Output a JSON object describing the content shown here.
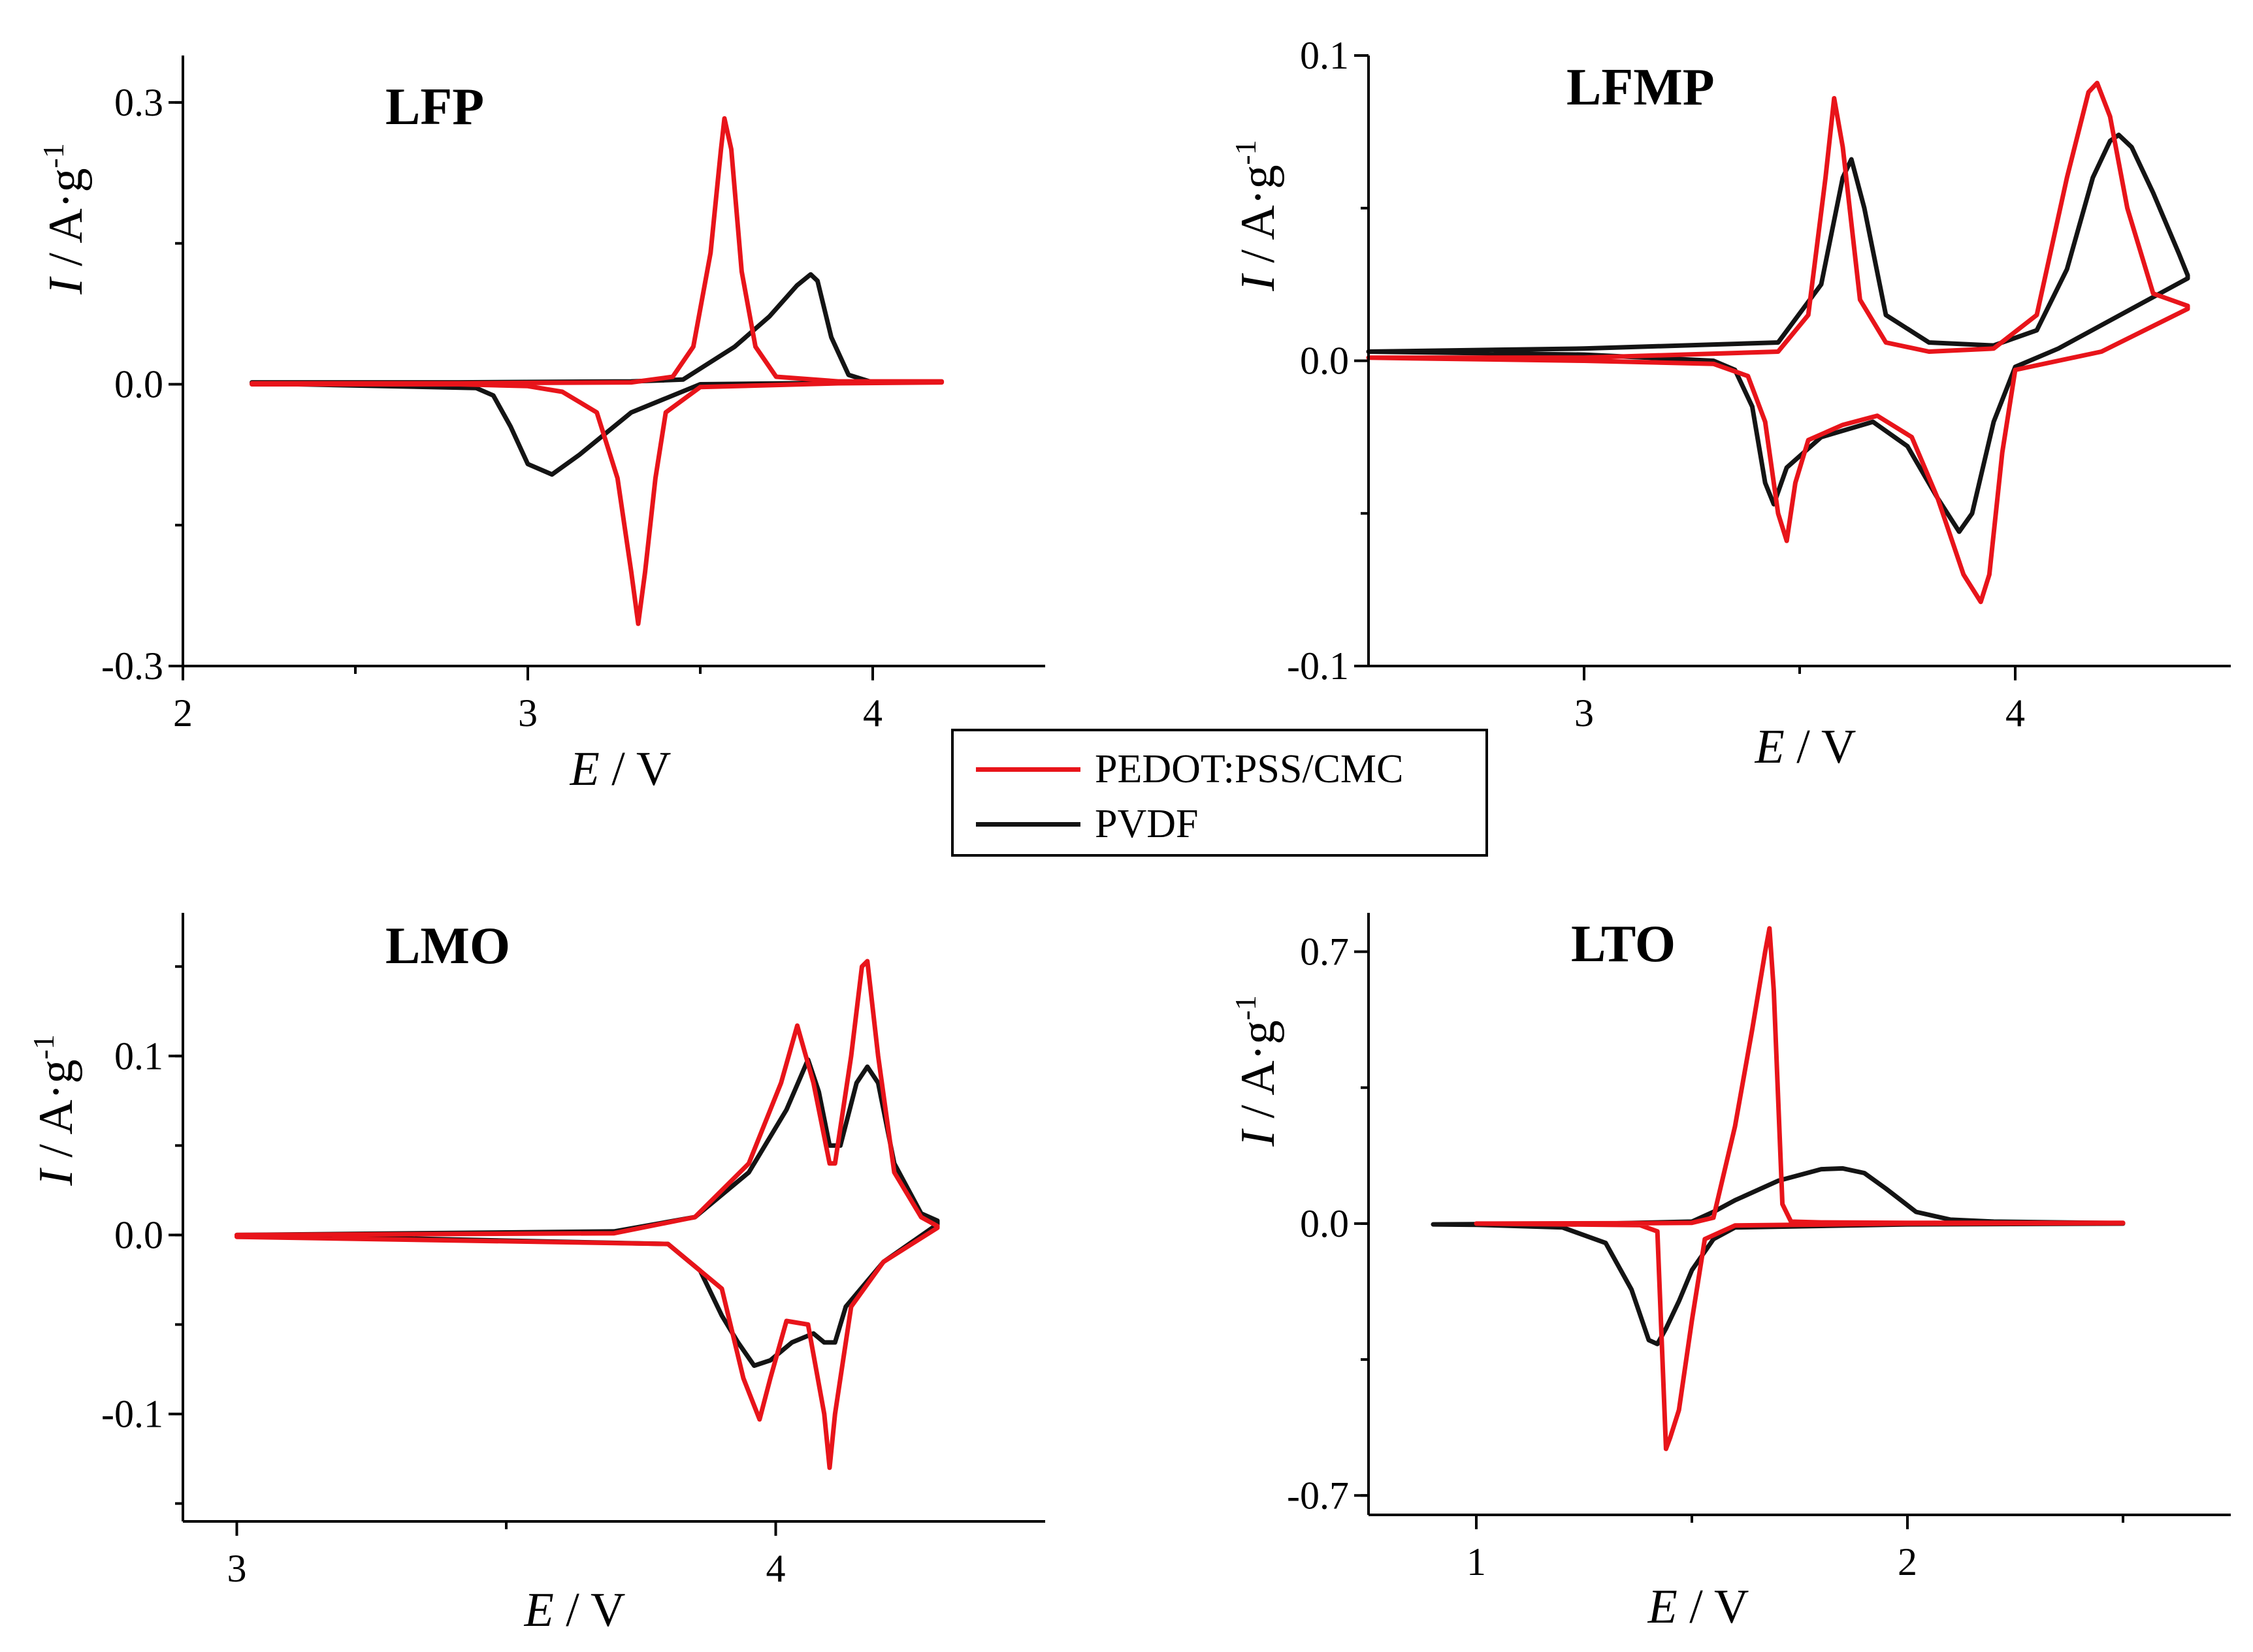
{
  "colors": {
    "pedot": "#e8141a",
    "pvdf": "#141414"
  },
  "legend": {
    "pedot_label": "PEDOT:PSS/CMC",
    "pvdf_label": "PVDF"
  },
  "chart_data": [
    {
      "id": "lfp",
      "type": "line",
      "title": "LFP",
      "xlabel": "E / V",
      "ylabel": "I / A·g-1",
      "xlim": [
        2.0,
        4.5
      ],
      "ylim": [
        -0.3,
        0.35
      ],
      "x_ticks": [
        2,
        3,
        4
      ],
      "y_ticks": [
        -0.3,
        0.0,
        0.3
      ],
      "x_tick_labels": [
        "2",
        "3",
        "4"
      ],
      "y_tick_labels": [
        "-0.3",
        "0.0",
        "0.3"
      ],
      "series": [
        {
          "name": "PEDOT:PSS/CMC",
          "color": "#e8141a",
          "x": [
            2.2,
            2.8,
            3.3,
            3.42,
            3.48,
            3.53,
            3.56,
            3.57,
            3.59,
            3.62,
            3.66,
            3.72,
            3.9,
            4.2,
            4.2,
            3.9,
            3.5,
            3.4,
            3.37,
            3.34,
            3.32,
            3.3,
            3.26,
            3.2,
            3.1,
            3.0,
            2.8,
            2.2
          ],
          "y": [
            0.001,
            0.001,
            0.002,
            0.008,
            0.04,
            0.14,
            0.25,
            0.283,
            0.25,
            0.12,
            0.04,
            0.008,
            0.003,
            0.003,
            0.002,
            0.001,
            -0.003,
            -0.03,
            -0.1,
            -0.2,
            -0.255,
            -0.2,
            -0.1,
            -0.03,
            -0.008,
            -0.002,
            0.0,
            0.0
          ]
        },
        {
          "name": "PVDF",
          "color": "#141414",
          "x": [
            2.2,
            2.8,
            3.3,
            3.45,
            3.6,
            3.7,
            3.78,
            3.82,
            3.84,
            3.88,
            3.93,
            4.0,
            4.0,
            3.5,
            3.3,
            3.15,
            3.07,
            3.0,
            2.95,
            2.9,
            2.85,
            2.2
          ],
          "y": [
            0.002,
            0.002,
            0.003,
            0.005,
            0.04,
            0.072,
            0.105,
            0.117,
            0.11,
            0.05,
            0.01,
            0.002,
            0.002,
            0.0,
            -0.03,
            -0.075,
            -0.096,
            -0.085,
            -0.045,
            -0.012,
            -0.004,
            0.001
          ]
        }
      ]
    },
    {
      "id": "lfmp",
      "type": "line",
      "title": "LFMP",
      "xlabel": "E / V",
      "ylabel": "I / A·g-1",
      "xlim": [
        2.5,
        4.5
      ],
      "ylim": [
        -0.1,
        0.1
      ],
      "x_ticks": [
        3,
        4
      ],
      "y_ticks": [
        -0.1,
        0.0,
        0.1
      ],
      "x_tick_labels": [
        "3",
        "4"
      ],
      "y_tick_labels": [
        "-0.1",
        "0.0",
        "0.1"
      ],
      "series": [
        {
          "name": "PEDOT:PSS/CMC",
          "color": "#e8141a",
          "x": [
            2.5,
            3.0,
            3.45,
            3.52,
            3.56,
            3.58,
            3.6,
            3.64,
            3.7,
            3.8,
            3.95,
            4.05,
            4.12,
            4.17,
            4.19,
            4.22,
            4.26,
            4.32,
            4.4,
            4.4,
            4.2,
            4.0,
            3.97,
            3.94,
            3.92,
            3.88,
            3.82,
            3.76,
            3.68,
            3.6,
            3.52,
            3.49,
            3.47,
            3.45,
            3.42,
            3.38,
            3.3,
            3.0,
            2.5
          ],
          "y": [
            0.001,
            0.001,
            0.003,
            0.015,
            0.06,
            0.086,
            0.07,
            0.02,
            0.006,
            0.003,
            0.004,
            0.015,
            0.06,
            0.088,
            0.091,
            0.08,
            0.05,
            0.022,
            0.018,
            0.017,
            0.003,
            -0.003,
            -0.03,
            -0.07,
            -0.079,
            -0.07,
            -0.045,
            -0.025,
            -0.018,
            -0.021,
            -0.026,
            -0.04,
            -0.059,
            -0.05,
            -0.02,
            -0.005,
            -0.001,
            0.0,
            0.001
          ]
        },
        {
          "name": "PVDF",
          "color": "#141414",
          "x": [
            2.5,
            3.0,
            3.45,
            3.55,
            3.6,
            3.62,
            3.65,
            3.7,
            3.8,
            3.95,
            4.05,
            4.12,
            4.18,
            4.22,
            4.24,
            4.27,
            4.32,
            4.38,
            4.4,
            4.4,
            4.1,
            4.0,
            3.95,
            3.9,
            3.87,
            3.82,
            3.75,
            3.67,
            3.55,
            3.47,
            3.44,
            3.42,
            3.39,
            3.35,
            3.3,
            3.0,
            2.5
          ],
          "y": [
            0.003,
            0.004,
            0.006,
            0.025,
            0.06,
            0.066,
            0.05,
            0.015,
            0.006,
            0.005,
            0.01,
            0.03,
            0.06,
            0.072,
            0.074,
            0.07,
            0.055,
            0.035,
            0.028,
            0.027,
            0.004,
            -0.002,
            -0.02,
            -0.05,
            -0.056,
            -0.045,
            -0.028,
            -0.02,
            -0.025,
            -0.035,
            -0.047,
            -0.04,
            -0.015,
            -0.003,
            0.0,
            0.002,
            0.003
          ]
        }
      ]
    },
    {
      "id": "lmo",
      "type": "line",
      "title": "LMO",
      "xlabel": "E / V",
      "ylabel": "I / A·g-1",
      "xlim": [
        2.9,
        4.5
      ],
      "ylim": [
        -0.16,
        0.18
      ],
      "x_ticks": [
        3,
        4
      ],
      "y_ticks": [
        -0.1,
        0.0,
        0.1
      ],
      "x_tick_labels": [
        "3",
        "4"
      ],
      "y_tick_labels": [
        "-0.1",
        "0.0",
        "0.1"
      ],
      "series": [
        {
          "name": "PEDOT:PSS/CMC",
          "color": "#e8141a",
          "x": [
            3.0,
            3.7,
            3.85,
            3.95,
            4.01,
            4.04,
            4.07,
            4.1,
            4.11,
            4.14,
            4.16,
            4.17,
            4.19,
            4.22,
            4.27,
            4.3,
            4.3,
            4.2,
            4.14,
            4.11,
            4.1,
            4.09,
            4.06,
            4.02,
            3.99,
            3.97,
            3.94,
            3.9,
            3.8,
            3.0
          ],
          "y": [
            0.0,
            0.001,
            0.01,
            0.04,
            0.085,
            0.117,
            0.085,
            0.04,
            0.04,
            0.1,
            0.15,
            0.153,
            0.1,
            0.035,
            0.01,
            0.005,
            0.004,
            -0.015,
            -0.04,
            -0.1,
            -0.13,
            -0.1,
            -0.05,
            -0.048,
            -0.08,
            -0.103,
            -0.08,
            -0.03,
            -0.005,
            -0.001
          ]
        },
        {
          "name": "PVDF",
          "color": "#141414",
          "x": [
            3.0,
            3.7,
            3.85,
            3.95,
            4.02,
            4.06,
            4.08,
            4.1,
            4.12,
            4.15,
            4.17,
            4.19,
            4.22,
            4.27,
            4.3,
            4.3,
            4.2,
            4.13,
            4.11,
            4.09,
            4.07,
            4.03,
            3.99,
            3.96,
            3.93,
            3.9,
            3.86,
            3.8,
            3.0
          ],
          "y": [
            0.0,
            0.002,
            0.01,
            0.035,
            0.07,
            0.098,
            0.08,
            0.05,
            0.05,
            0.085,
            0.094,
            0.085,
            0.04,
            0.012,
            0.008,
            0.006,
            -0.015,
            -0.04,
            -0.06,
            -0.06,
            -0.055,
            -0.06,
            -0.07,
            -0.073,
            -0.06,
            -0.045,
            -0.02,
            -0.005,
            0.0
          ]
        }
      ]
    },
    {
      "id": "lto",
      "type": "line",
      "title": "LTO",
      "xlabel": "E / V",
      "ylabel": "I / A·g-1",
      "xlim": [
        0.75,
        2.75
      ],
      "ylim": [
        -0.75,
        0.8
      ],
      "x_ticks": [
        1,
        2
      ],
      "y_ticks": [
        -0.7,
        0.0,
        0.7
      ],
      "x_tick_labels": [
        "1",
        "2"
      ],
      "y_tick_labels": [
        "-0.7",
        "0.0",
        "0.7"
      ],
      "series": [
        {
          "name": "PEDOT:PSS/CMC",
          "color": "#e8141a",
          "x": [
            1.0,
            1.4,
            1.5,
            1.55,
            1.6,
            1.64,
            1.67,
            1.68,
            1.69,
            1.71,
            1.73,
            1.8,
            2.0,
            2.5,
            2.5,
            2.0,
            1.6,
            1.53,
            1.5,
            1.47,
            1.45,
            1.44,
            1.43,
            1.42,
            1.38,
            1.2,
            1.0
          ],
          "y": [
            0.0,
            0.001,
            0.002,
            0.015,
            0.25,
            0.5,
            0.7,
            0.76,
            0.6,
            0.05,
            0.005,
            0.003,
            0.002,
            0.002,
            0.001,
            0.0,
            -0.005,
            -0.04,
            -0.25,
            -0.48,
            -0.55,
            -0.58,
            -0.3,
            -0.02,
            -0.004,
            -0.002,
            0.0
          ]
        },
        {
          "name": "PVDF",
          "color": "#141414",
          "x": [
            0.9,
            1.3,
            1.5,
            1.55,
            1.6,
            1.7,
            1.8,
            1.85,
            1.9,
            1.95,
            2.02,
            2.1,
            2.2,
            2.5,
            2.5,
            2.0,
            1.6,
            1.55,
            1.5,
            1.47,
            1.44,
            1.42,
            1.4,
            1.36,
            1.3,
            1.2,
            1.0,
            0.9
          ],
          "y": [
            -0.002,
            0.0,
            0.005,
            0.03,
            0.06,
            0.11,
            0.14,
            0.142,
            0.13,
            0.09,
            0.03,
            0.01,
            0.005,
            0.001,
            0.0,
            -0.002,
            -0.01,
            -0.04,
            -0.12,
            -0.2,
            -0.27,
            -0.31,
            -0.3,
            -0.17,
            -0.05,
            -0.01,
            -0.003,
            -0.002
          ]
        }
      ]
    }
  ]
}
